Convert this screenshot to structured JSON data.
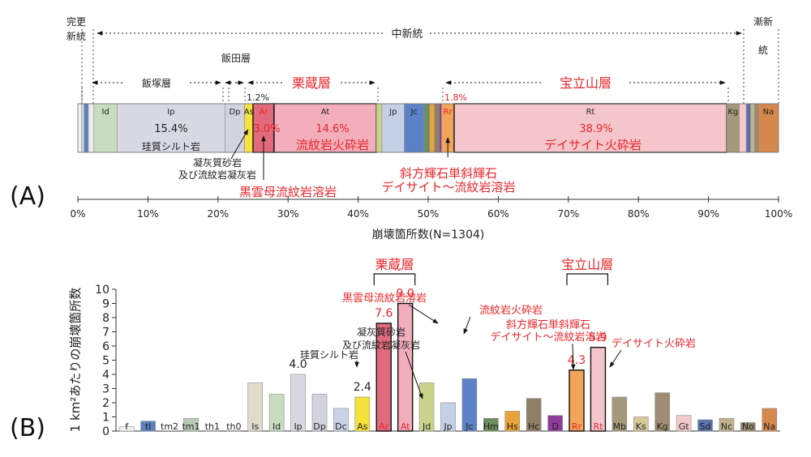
{
  "chart_data": [
    {
      "panel": "(A)",
      "type": "bar",
      "orientation": "horizontal-stacked",
      "xlabel": "崩壊箇所数(N=1304)",
      "xlim": [
        0,
        100
      ],
      "x_ticks": [
        "0%",
        "10%",
        "20%",
        "30%",
        "40%",
        "50%",
        "60%",
        "70%",
        "80%",
        "90%",
        "100%"
      ],
      "segments": [
        {
          "code": "",
          "start": 0.0,
          "end": 0.5,
          "color": "#f3f3f3"
        },
        {
          "code": "",
          "start": 0.5,
          "end": 0.9,
          "color": "#c9d5ea"
        },
        {
          "code": "",
          "start": 0.9,
          "end": 1.5,
          "color": "#5b7fc0"
        },
        {
          "code": "",
          "start": 1.5,
          "end": 2.3,
          "color": "#ececec"
        },
        {
          "code": "Id",
          "start": 2.3,
          "end": 5.6,
          "color": "#c8dcc0"
        },
        {
          "code": "Ip",
          "start": 5.6,
          "end": 21.0,
          "color": "#d9d9e3"
        },
        {
          "code": "Dp",
          "start": 21.0,
          "end": 23.8,
          "color": "#d3d3df"
        },
        {
          "code": "As",
          "start": 23.8,
          "end": 25.0,
          "color": "#f5e23a"
        },
        {
          "code": "Ar",
          "start": 25.0,
          "end": 28.0,
          "color": "#e26a7d"
        },
        {
          "code": "At",
          "start": 28.0,
          "end": 42.6,
          "color": "#f2aebb"
        },
        {
          "code": "",
          "start": 42.6,
          "end": 43.4,
          "color": "#c9d48a"
        },
        {
          "code": "Jp",
          "start": 43.4,
          "end": 46.6,
          "color": "#c5d0e6"
        },
        {
          "code": "Jc",
          "start": 46.6,
          "end": 49.4,
          "color": "#5b82c6"
        },
        {
          "code": "",
          "start": 49.4,
          "end": 50.2,
          "color": "#6b8f5e"
        },
        {
          "code": "",
          "start": 50.2,
          "end": 50.9,
          "color": "#e9a23b"
        },
        {
          "code": "",
          "start": 50.9,
          "end": 51.6,
          "color": "#8f7f66"
        },
        {
          "code": "",
          "start": 51.6,
          "end": 51.9,
          "color": "#8e3b9a"
        },
        {
          "code": "Rr",
          "start": 51.9,
          "end": 53.7,
          "color": "#f2a558"
        },
        {
          "code": "Rt",
          "start": 53.7,
          "end": 92.6,
          "color": "#f4c6cc"
        },
        {
          "code": "Kg",
          "start": 92.6,
          "end": 94.4,
          "color": "#a49a7b"
        },
        {
          "code": "",
          "start": 94.4,
          "end": 95.4,
          "color": "#f5c9c9"
        },
        {
          "code": "",
          "start": 95.4,
          "end": 96.0,
          "color": "#5a73ac"
        },
        {
          "code": "",
          "start": 96.0,
          "end": 96.6,
          "color": "#bfb28f"
        },
        {
          "code": "",
          "start": 96.6,
          "end": 97.1,
          "color": "#9a8a6e"
        },
        {
          "code": "Na",
          "start": 97.1,
          "end": 100.0,
          "color": "#d5874e"
        }
      ],
      "percent_labels": [
        {
          "code": "Ip",
          "text": "15.4%",
          "red": false
        },
        {
          "code": "As",
          "text": "1.2%",
          "red": false
        },
        {
          "code": "Ar",
          "text": "3.0%",
          "red": true
        },
        {
          "code": "At",
          "text": "14.6%",
          "red": true
        },
        {
          "code": "Rr",
          "text": "1.8%",
          "red": true
        },
        {
          "code": "Rt",
          "text": "38.9%",
          "red": true
        }
      ],
      "inner_labels": [
        {
          "code": "Ip",
          "text": "珪質シルト岩",
          "red": false
        },
        {
          "code": "At",
          "text": "流紋岩火砕岩",
          "red": true
        },
        {
          "code": "Rt",
          "text": "デイサイト火砕岩",
          "red": true
        }
      ],
      "era_labels": {
        "kanshinsei": "完更新統",
        "chushinto": "中新統",
        "zenshinto": "漸新統"
      },
      "formations": {
        "iizuka": "飯塚層",
        "iida": "飯田層",
        "kurikura": "栗蔵層",
        "horyusan": "宝立山層"
      },
      "annotations": {
        "tuff": [
          "凝灰質砂岩",
          "及び流紋岩凝灰岩"
        ],
        "biotite": "黒雲母流紋岩溶岩",
        "dacite_lava": [
          "斜方輝石単斜輝石",
          "デイサイト～流紋岩溶岩"
        ]
      }
    },
    {
      "panel": "(B)",
      "type": "bar",
      "ylabel": "1 km²あたりの崩壊箇所数",
      "ylim": [
        0,
        10
      ],
      "y_ticks": [
        "0",
        "1",
        "2",
        "3",
        "4",
        "5",
        "6",
        "7",
        "8",
        "9",
        "10"
      ],
      "categories": [
        "f",
        "tl",
        "tm2",
        "tm1",
        "th1",
        "th0",
        "Is",
        "Id",
        "Ip",
        "Dp",
        "Dc",
        "As",
        "Ar",
        "At",
        "Jd",
        "Jp",
        "Jc",
        "Hm",
        "Hs",
        "Hc",
        "D",
        "Rr",
        "Rt",
        "Mb",
        "Ks",
        "Kg",
        "Gt",
        "Sd",
        "Nc",
        "No",
        "Na"
      ],
      "values": [
        0.3,
        0.7,
        0.0,
        0.9,
        0.05,
        0.05,
        3.4,
        2.6,
        4.0,
        2.6,
        1.6,
        2.4,
        7.6,
        9.0,
        3.4,
        2.0,
        3.7,
        0.9,
        1.4,
        2.3,
        1.1,
        4.3,
        5.9,
        2.4,
        1.0,
        2.7,
        1.1,
        0.8,
        0.9,
        0.6,
        1.6
      ],
      "colors": [
        "#f0f0f0",
        "#5b7fc0",
        "#e6e6e6",
        "#b9cab7",
        "#eeeeee",
        "#eeeeee",
        "#dfdccb",
        "#c8dcc0",
        "#d9d9e3",
        "#d3d3df",
        "#c8d2e8",
        "#f5e23a",
        "#e26a7d",
        "#f2aebb",
        "#c9d48a",
        "#c5d0e6",
        "#5b82c6",
        "#6b8f5e",
        "#e9a23b",
        "#8f7f66",
        "#8e3b9a",
        "#f2a558",
        "#f4c6cc",
        "#a49a7b",
        "#d8c99b",
        "#a08c72",
        "#f5c9c9",
        "#5a73ac",
        "#bfb28f",
        "#9a8a6e",
        "#d5874e"
      ],
      "highlight": [
        "Ar",
        "At",
        "Rr",
        "Rt"
      ],
      "red_labels": [
        "Ar",
        "At",
        "Rr",
        "Rt"
      ],
      "value_labels": [
        {
          "code": "Ip",
          "text": "4.0",
          "red": false
        },
        {
          "code": "As",
          "text": "2.4",
          "red": false
        },
        {
          "code": "Ar",
          "text": "7.6",
          "red": true
        },
        {
          "code": "At",
          "text": "9.0",
          "red": true
        },
        {
          "code": "Rr",
          "text": "4.3",
          "red": true
        },
        {
          "code": "Rt",
          "text": "5.9",
          "red": true
        }
      ],
      "annotations": [
        {
          "target": "Ip",
          "lines": [
            "珪質シルト岩"
          ],
          "red": false
        },
        {
          "target": "As",
          "lines": [
            "凝灰質砂岩",
            "及び流紋岩凝灰岩"
          ],
          "red": false
        },
        {
          "target": "Ar",
          "lines": [
            "黒雲母流紋岩溶岩"
          ],
          "red": true
        },
        {
          "target": "At",
          "lines": [
            "流紋岩火砕岩"
          ],
          "red": true
        },
        {
          "target": "Rr",
          "lines": [
            "斜方輝石単斜輝石",
            "デイサイト～流紋岩溶岩"
          ],
          "red": true
        },
        {
          "target": "Rt",
          "lines": [
            "デイサイト火砕岩"
          ],
          "red": true
        }
      ],
      "group_labels": [
        {
          "text": "栗蔵層",
          "from": "Ar",
          "to": "At"
        },
        {
          "text": "宝立山層",
          "from": "Rr",
          "to": "Rt"
        }
      ]
    }
  ]
}
